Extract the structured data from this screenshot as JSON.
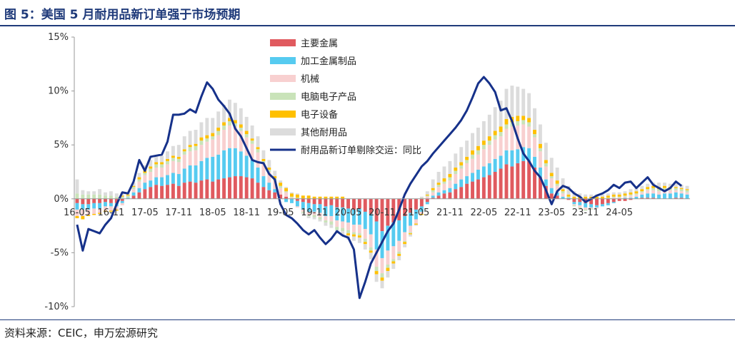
{
  "figure": {
    "title": "图 5：美国 5 月耐用品新订单强于市场预期",
    "source": "资料来源：CEIC，申万宏源研究"
  },
  "chart_data": {
    "type": "bar",
    "stacked": true,
    "title": "",
    "xlabel": "",
    "ylabel": "",
    "ylim": [
      -10,
      15
    ],
    "yticks": [
      "-10%",
      "-5%",
      "0%",
      "5%",
      "10%",
      "15%"
    ],
    "ytick_values": [
      -10,
      -5,
      0,
      5,
      10,
      15
    ],
    "x_tick_labels": [
      "16-05",
      "16-11",
      "17-05",
      "17-11",
      "18-05",
      "18-11",
      "19-05",
      "19-11",
      "20-05",
      "20-11",
      "21-05",
      "21-11",
      "22-05",
      "22-11",
      "23-05",
      "23-11",
      "24-05"
    ],
    "grid": false,
    "legend_position": "top-center",
    "series_colors": {
      "主要金属": "#e05a5f",
      "加工金属制品": "#56cbf0",
      "机械": "#f8d0d0",
      "电脑电子产品": "#c9e3b9",
      "电子设备": "#ffc000",
      "其他耐用品": "#dcdcdc",
      "耐用品新订单剔除交运：同比": "#16318a"
    },
    "series": [
      {
        "name": "主要金属",
        "kind": "bar",
        "values": [
          -0.4,
          -0.5,
          -0.5,
          -0.4,
          -0.4,
          -0.3,
          -0.4,
          -0.4,
          -0.2,
          0.0,
          0.3,
          0.6,
          0.9,
          1.1,
          1.3,
          1.2,
          1.3,
          1.4,
          1.2,
          1.5,
          1.6,
          1.5,
          1.7,
          1.8,
          1.6,
          1.8,
          1.9,
          2.0,
          2.1,
          2.1,
          2.0,
          1.9,
          1.5,
          1.1,
          0.8,
          0.6,
          0.4,
          0.2,
          0.0,
          -0.2,
          -0.3,
          -0.4,
          -0.5,
          -0.5,
          -0.7,
          -0.6,
          -0.8,
          -0.8,
          -0.9,
          -1.0,
          -0.9,
          -1.2,
          -1.4,
          -2.1,
          -3.0,
          -2.5,
          -2.2,
          -2.0,
          -1.6,
          -1.3,
          -1.0,
          -0.7,
          -0.3,
          0.1,
          0.3,
          0.5,
          0.6,
          0.9,
          1.1,
          1.4,
          1.6,
          1.8,
          2.0,
          2.2,
          2.5,
          2.8,
          3.2,
          3.0,
          3.3,
          3.5,
          3.5,
          2.9,
          2.0,
          1.2,
          0.5,
          0.3,
          0.0,
          -0.1,
          -0.3,
          -0.3,
          -0.4,
          -0.5,
          -0.6,
          -0.5,
          -0.4,
          -0.3,
          -0.2,
          -0.2,
          -0.1,
          0.0,
          0.1,
          0.1,
          0.1,
          0.0,
          0.0,
          0.0,
          0.1,
          0.1,
          0.0
        ]
      },
      {
        "name": "加工金属制品",
        "kind": "bar",
        "values": [
          -0.6,
          -0.5,
          -0.5,
          -0.5,
          -0.5,
          -0.4,
          -0.3,
          -0.3,
          -0.2,
          0.1,
          0.3,
          0.4,
          0.6,
          0.6,
          0.7,
          0.8,
          0.9,
          1.0,
          1.1,
          1.3,
          1.5,
          1.6,
          1.8,
          2.0,
          2.3,
          2.3,
          2.6,
          2.7,
          2.6,
          2.3,
          2.0,
          1.7,
          1.4,
          1.0,
          0.7,
          0.3,
          0.0,
          -0.3,
          -0.4,
          -0.5,
          -0.7,
          -0.8,
          -0.7,
          -0.8,
          -0.9,
          -1.0,
          -1.2,
          -1.3,
          -1.3,
          -1.4,
          -1.5,
          -1.6,
          -1.9,
          -2.6,
          -2.5,
          -2.3,
          -2.2,
          -1.9,
          -1.5,
          -1.2,
          -0.9,
          -0.5,
          -0.2,
          0.2,
          0.3,
          0.3,
          0.4,
          0.5,
          0.7,
          0.7,
          0.8,
          0.9,
          1.0,
          1.1,
          1.2,
          1.2,
          1.3,
          1.5,
          1.3,
          1.3,
          1.2,
          1.0,
          0.9,
          0.6,
          0.5,
          0.3,
          0.2,
          0.1,
          -0.2,
          -0.3,
          -0.4,
          -0.3,
          -0.2,
          -0.2,
          -0.2,
          -0.1,
          0.0,
          0.1,
          0.1,
          0.2,
          0.3,
          0.4,
          0.4,
          0.4,
          0.5,
          0.5,
          0.5,
          0.4,
          0.4
        ]
      },
      {
        "name": "机械",
        "kind": "bar",
        "values": [
          -0.6,
          -0.6,
          -0.5,
          -0.5,
          -0.4,
          -0.4,
          -0.4,
          -0.3,
          -0.2,
          0.0,
          0.3,
          0.6,
          0.7,
          0.8,
          0.9,
          0.9,
          1.0,
          1.1,
          1.1,
          1.3,
          1.3,
          1.4,
          1.5,
          1.5,
          1.6,
          1.8,
          1.9,
          2.1,
          2.0,
          1.9,
          1.7,
          1.5,
          1.4,
          1.2,
          1.0,
          0.8,
          0.6,
          0.4,
          0.1,
          -0.1,
          -0.2,
          -0.3,
          -0.3,
          -0.4,
          -0.4,
          -0.5,
          -0.6,
          -0.6,
          -0.7,
          -0.7,
          -0.8,
          -0.9,
          -1.2,
          -1.6,
          -1.4,
          -1.3,
          -1.2,
          -1.0,
          -0.8,
          -0.6,
          -0.4,
          -0.2,
          0.2,
          0.3,
          0.5,
          0.6,
          0.7,
          0.9,
          1.0,
          1.2,
          1.3,
          1.4,
          1.6,
          1.7,
          1.8,
          1.8,
          2.0,
          2.2,
          2.2,
          2.1,
          2.0,
          1.8,
          1.5,
          1.2,
          0.9,
          0.6,
          0.3,
          0.0,
          -0.1,
          -0.2,
          -0.2,
          -0.1,
          -0.1,
          0.0,
          0.0,
          0.1,
          0.1,
          0.1,
          0.2,
          0.2,
          0.2,
          0.3,
          0.3,
          0.3,
          0.3,
          0.3,
          0.2,
          0.2,
          0.2
        ]
      },
      {
        "name": "电脑电子产品",
        "kind": "bar",
        "values": [
          0.5,
          0.4,
          0.4,
          0.4,
          0.4,
          0.3,
          0.3,
          0.2,
          0.2,
          0.2,
          0.2,
          0.2,
          0.2,
          0.3,
          0.3,
          0.3,
          0.3,
          0.3,
          0.3,
          0.3,
          0.4,
          0.4,
          0.4,
          0.3,
          0.3,
          0.4,
          0.4,
          0.4,
          0.3,
          0.3,
          0.3,
          0.3,
          0.3,
          0.2,
          0.2,
          0.2,
          0.2,
          0.1,
          0.1,
          0.1,
          -0.1,
          -0.1,
          -0.2,
          -0.2,
          -0.2,
          -0.3,
          -0.3,
          -0.3,
          -0.3,
          -0.2,
          -0.2,
          -0.3,
          -0.3,
          -0.4,
          -0.4,
          -0.3,
          -0.2,
          -0.2,
          -0.1,
          -0.1,
          0.0,
          0.1,
          0.1,
          0.2,
          0.2,
          0.2,
          0.3,
          0.3,
          0.3,
          0.3,
          0.4,
          0.4,
          0.4,
          0.4,
          0.4,
          0.4,
          0.4,
          0.4,
          0.4,
          0.4,
          0.4,
          0.3,
          0.3,
          0.3,
          0.2,
          0.2,
          0.2,
          0.1,
          -0.1,
          -0.1,
          -0.1,
          -0.1,
          0.0,
          0.0,
          0.1,
          0.1,
          0.1,
          0.1,
          0.1,
          0.1,
          0.1,
          0.1,
          0.2,
          0.2,
          0.2,
          0.2,
          0.2,
          0.2,
          0.2
        ]
      },
      {
        "name": "电子设备",
        "kind": "bar",
        "values": [
          -0.2,
          -0.3,
          -0.1,
          -0.1,
          -0.1,
          -0.1,
          -0.1,
          -0.1,
          0.1,
          0.1,
          0.1,
          0.2,
          0.2,
          0.2,
          0.2,
          0.2,
          0.2,
          0.2,
          0.2,
          0.2,
          0.2,
          0.2,
          0.3,
          0.3,
          0.3,
          0.3,
          0.3,
          0.3,
          0.3,
          0.3,
          0.3,
          0.2,
          0.2,
          0.2,
          0.2,
          0.2,
          0.3,
          0.3,
          0.3,
          0.3,
          0.3,
          0.3,
          0.2,
          0.2,
          0.2,
          0.2,
          0.2,
          0.2,
          -0.2,
          -0.2,
          -0.2,
          -0.2,
          -0.2,
          -0.3,
          -0.3,
          -0.3,
          -0.2,
          -0.2,
          -0.2,
          -0.1,
          -0.1,
          -0.1,
          0.1,
          0.2,
          0.2,
          0.3,
          0.3,
          0.3,
          0.3,
          0.3,
          0.4,
          0.4,
          0.4,
          0.4,
          0.4,
          0.5,
          0.5,
          0.5,
          0.5,
          0.4,
          0.4,
          0.4,
          0.4,
          0.3,
          0.3,
          0.3,
          0.2,
          0.2,
          0.2,
          0.2,
          0.2,
          0.2,
          0.2,
          0.2,
          0.2,
          0.2,
          0.2,
          0.2,
          0.2,
          0.2,
          0.2,
          0.2,
          0.2,
          0.2,
          0.2,
          0.1,
          0.1,
          0.1,
          0.1
        ]
      },
      {
        "name": "其他耐用品",
        "kind": "bar",
        "values": [
          1.3,
          0.4,
          0.3,
          0.3,
          0.5,
          0.3,
          0.4,
          0.3,
          0.3,
          0.2,
          0.3,
          0.4,
          0.5,
          0.6,
          0.5,
          0.6,
          0.7,
          0.9,
          1.1,
          1.2,
          1.3,
          1.3,
          1.4,
          1.6,
          1.4,
          1.5,
          1.6,
          1.7,
          1.6,
          1.5,
          1.3,
          1.2,
          1.0,
          0.8,
          0.7,
          0.5,
          0.2,
          0.1,
          0.1,
          0.1,
          -0.1,
          -0.2,
          -0.2,
          -0.2,
          -0.3,
          -0.3,
          -0.3,
          -0.4,
          -0.4,
          -0.4,
          -0.5,
          -0.5,
          -0.6,
          -0.7,
          -0.7,
          -0.6,
          -0.5,
          -0.4,
          -0.3,
          -0.2,
          -0.1,
          0.1,
          0.3,
          0.8,
          1.0,
          1.1,
          1.2,
          1.3,
          1.4,
          1.5,
          1.6,
          1.7,
          1.8,
          2.0,
          2.2,
          2.4,
          2.8,
          2.9,
          2.7,
          2.5,
          2.3,
          2.0,
          1.8,
          1.6,
          1.4,
          1.2,
          1.0,
          0.8,
          0.5,
          0.3,
          0.2,
          0.2,
          0.2,
          0.2,
          0.2,
          0.2,
          0.2,
          0.2,
          0.3,
          0.3,
          0.3,
          0.3,
          0.3,
          0.4,
          0.3,
          0.3,
          0.3,
          0.3,
          0.3
        ]
      },
      {
        "name": "耐用品新订单剔除交运：同比",
        "kind": "line",
        "values": [
          -2.4,
          -4.8,
          -2.8,
          -3.0,
          -3.2,
          -2.4,
          -1.8,
          -0.5,
          0.6,
          0.5,
          1.6,
          3.6,
          2.6,
          3.9,
          4.0,
          4.1,
          5.3,
          7.8,
          7.8,
          7.9,
          8.3,
          8.0,
          9.5,
          10.8,
          10.2,
          9.2,
          8.6,
          7.9,
          6.5,
          5.8,
          4.7,
          3.6,
          3.4,
          3.3,
          2.3,
          1.8,
          -0.5,
          -1.5,
          -1.8,
          -2.3,
          -2.9,
          -3.3,
          -2.9,
          -3.6,
          -4.2,
          -3.7,
          -3.0,
          -3.4,
          -3.6,
          -4.7,
          -9.2,
          -7.7,
          -6.0,
          -5.0,
          -4.0,
          -3.0,
          -2.3,
          -1.0,
          0.4,
          1.4,
          2.2,
          3.0,
          3.5,
          4.2,
          4.8,
          5.4,
          6.0,
          6.6,
          7.3,
          8.2,
          9.4,
          10.7,
          11.3,
          10.7,
          9.9,
          8.2,
          8.4,
          7.2,
          5.6,
          4.2,
          3.5,
          2.6,
          2.0,
          0.8,
          -0.5,
          0.7,
          1.2,
          1.0,
          0.5,
          0.2,
          -0.3,
          0.0,
          0.3,
          0.5,
          0.8,
          1.3,
          1.0,
          1.5,
          1.6,
          1.0,
          1.5,
          2.0,
          1.3,
          1.0,
          0.7,
          1.0,
          1.6,
          1.2
        ]
      }
    ]
  }
}
